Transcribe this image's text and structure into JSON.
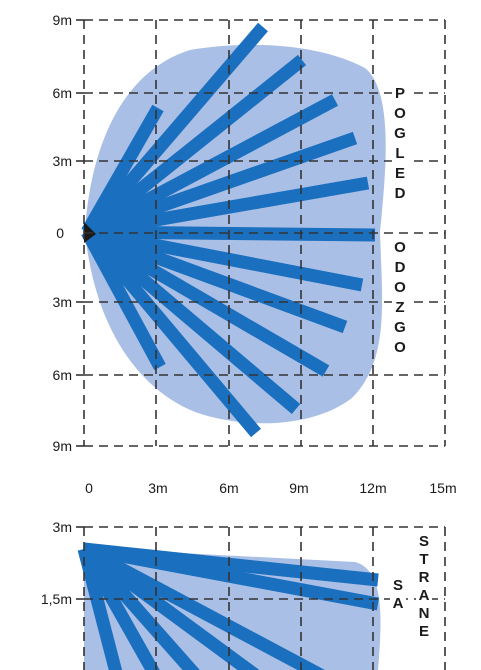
{
  "top_view": {
    "y_labels": [
      "9m",
      "6m",
      "3m",
      "0",
      "3m",
      "6m",
      "9m"
    ],
    "x_labels": [
      "0",
      "3m",
      "6m",
      "9m",
      "12m",
      "15m"
    ],
    "side_text_1": "POGLED",
    "side_text_2": "ODOZGO"
  },
  "side_view": {
    "y_labels": [
      "3m",
      "1,5m"
    ],
    "side_text_1": "SA",
    "side_text_2": "STRANE"
  },
  "colors": {
    "coverage": "#a9bfe6",
    "beam": "#1a6fbf",
    "grid": "#333333"
  }
}
